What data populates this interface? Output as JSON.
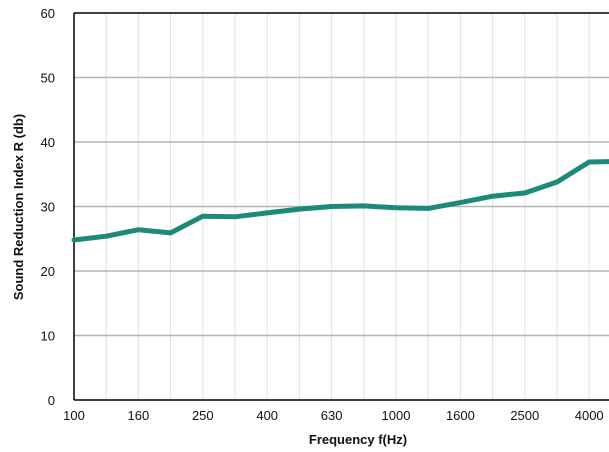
{
  "chart_data": {
    "type": "line",
    "xlabel": "Frequency f(Hz)",
    "ylabel": "Sound Reduction Index R (db)",
    "ylim": [
      0,
      60
    ],
    "yticks": [
      0,
      10,
      20,
      30,
      40,
      50,
      60
    ],
    "xticks": [
      "100",
      "160",
      "250",
      "400",
      "630",
      "1000",
      "1600",
      "2500",
      "4000"
    ],
    "x": [
      100,
      125,
      160,
      200,
      250,
      315,
      400,
      500,
      630,
      800,
      1000,
      1250,
      1600,
      2000,
      2500,
      3150,
      4000,
      5000
    ],
    "series": [
      {
        "values": [
          24.8,
          25.4,
          26.4,
          25.9,
          28.5,
          28.4,
          29.0,
          29.6,
          30.0,
          30.1,
          29.8,
          29.7,
          30.6,
          31.6,
          32.1,
          33.8,
          36.9,
          37.0
        ]
      }
    ],
    "colors": {
      "line": "#1b8a78",
      "grid_major": "#b5b5b5",
      "grid_minor": "#e2e2e2",
      "axis": "#000000"
    },
    "grid": true,
    "legend": "none"
  }
}
